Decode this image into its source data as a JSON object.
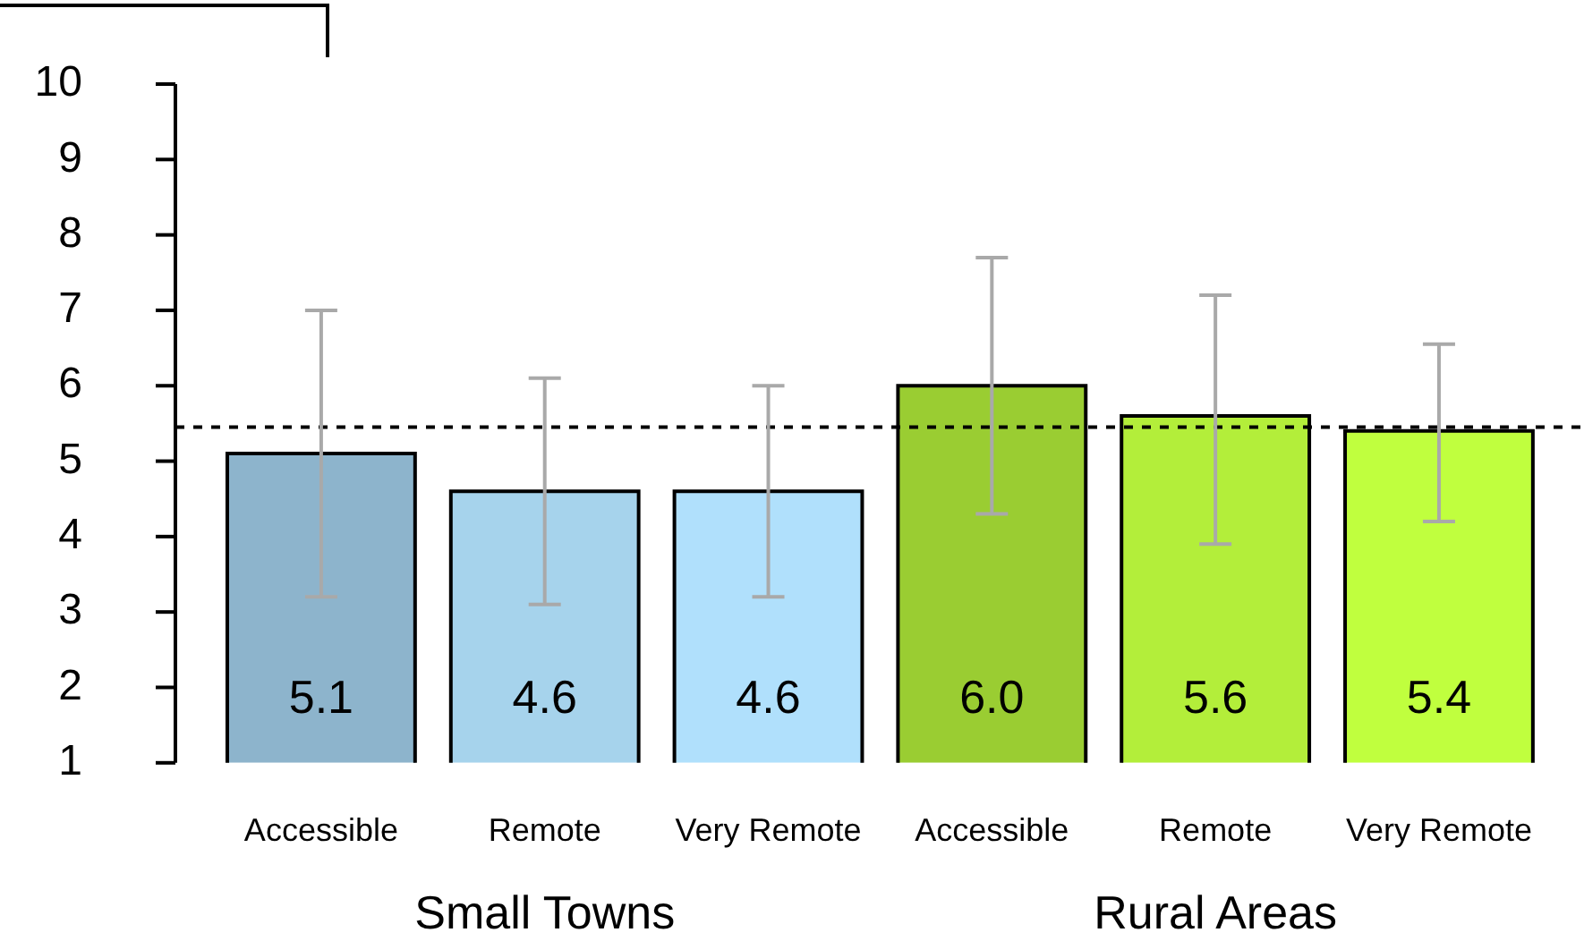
{
  "chart_data": {
    "type": "bar",
    "categories": [
      "Accessible",
      "Remote",
      "Very Remote",
      "Accessible",
      "Remote",
      "Very Remote"
    ],
    "values": [
      5.1,
      4.6,
      4.6,
      6.0,
      5.6,
      5.4
    ],
    "colors": [
      "#8db4cc",
      "#a6d3ec",
      "#b0e0fc",
      "#9acd32",
      "#b3ee3a",
      "#c0ff3e"
    ],
    "errors": [
      [
        3.2,
        7.0
      ],
      [
        3.1,
        6.1
      ],
      [
        3.2,
        6.0
      ],
      [
        4.3,
        7.7
      ],
      [
        3.9,
        7.2
      ],
      [
        4.2,
        6.55
      ]
    ],
    "ylim": [
      1,
      10
    ],
    "yticks": [
      1,
      2,
      3,
      4,
      5,
      6,
      7,
      8,
      9,
      10
    ],
    "ref_lines": [
      {
        "axis": "y",
        "value": 5.45,
        "line_style": "dashed",
        "color": "#000000"
      }
    ],
    "annotations": [
      "Small Towns",
      "Rural Areas"
    ],
    "data_labels": true,
    "value_labels": [
      "5.1",
      "4.6",
      "4.6",
      "6.0",
      "5.6",
      "5.4"
    ],
    "grid": false,
    "legend": false
  }
}
